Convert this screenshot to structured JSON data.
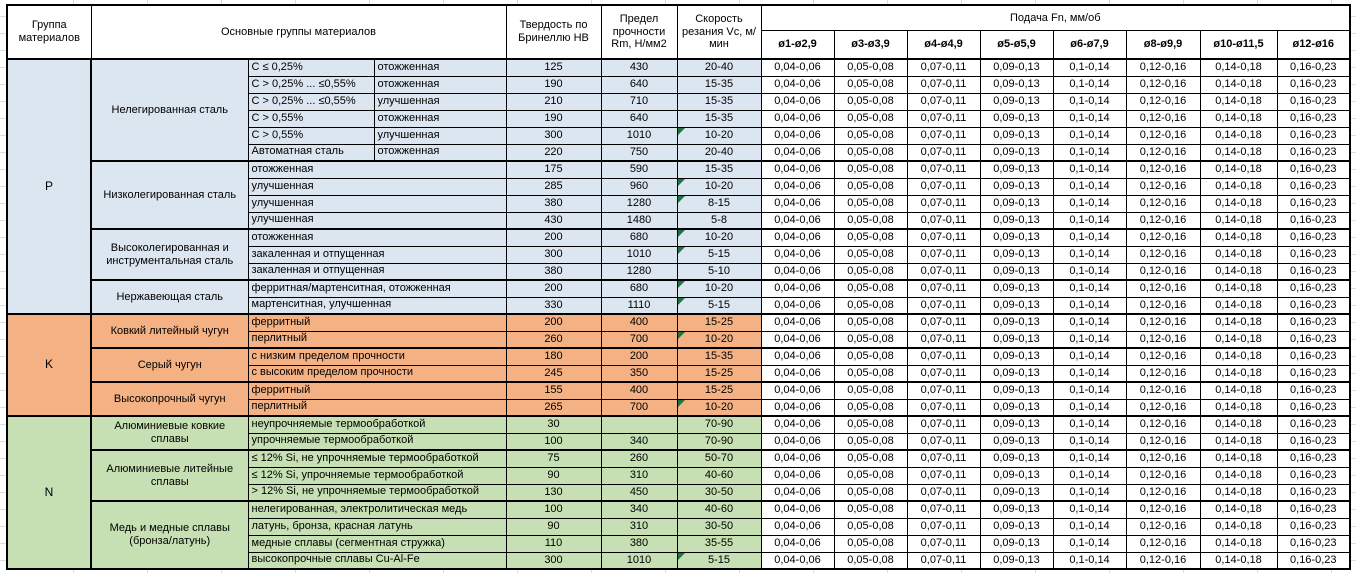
{
  "header": {
    "group_col": "Группа материалов",
    "material_col": "Основные группы материалов",
    "hardness_col": "Твердость по Бринеллю HB",
    "strength_col": "Предел прочности Rm, Н/мм2",
    "speed_col": "Скорость резания Vc, м/мин",
    "feed_col": "Подача Fn, мм/об",
    "feed_diameters": [
      "ø1-ø2,9",
      "ø3-ø3,9",
      "ø4-ø4,9",
      "ø5-ø5,9",
      "ø6-ø7,9",
      "ø8-ø9,9",
      "ø10-ø11,5",
      "ø12-ø16"
    ]
  },
  "feed_values": [
    "0,04-0,06",
    "0,05-0,08",
    "0,07-0,11",
    "0,09-0,13",
    "0,1-0,14",
    "0,12-0,16",
    "0,14-0,18",
    "0,16-0,23"
  ],
  "colors": {
    "group_p": "#DCE6F1",
    "group_k": "#F4B183",
    "group_n": "#C6E0B4",
    "flag": "#217346",
    "border": "#000000",
    "gridline": "#DCDCDC"
  },
  "groups": [
    {
      "code": "P",
      "color_key": "group_p",
      "blocks": [
        {
          "name": "Нелегированная сталь",
          "rows": [
            {
              "sub1": "C ≤ 0,25%",
              "sub2": "отожженная",
              "hb": "125",
              "rm": "430",
              "vc": "20-40",
              "flag": false
            },
            {
              "sub1": "C > 0,25% ... ≤0,55%",
              "sub2": "отожженная",
              "hb": "190",
              "rm": "640",
              "vc": "15-35",
              "flag": false
            },
            {
              "sub1": "C > 0,25% ... ≤0,55%",
              "sub2": "улучшенная",
              "hb": "210",
              "rm": "710",
              "vc": "15-35",
              "flag": false
            },
            {
              "sub1": "C > 0,55%",
              "sub2": "отожженная",
              "hb": "190",
              "rm": "640",
              "vc": "15-35",
              "flag": false
            },
            {
              "sub1": "C > 0,55%",
              "sub2": "улучшенная",
              "hb": "300",
              "rm": "1010",
              "vc": "10-20",
              "flag": true
            },
            {
              "sub1": "Автоматная сталь",
              "sub2": "отожженная",
              "hb": "220",
              "rm": "750",
              "vc": "20-40",
              "flag": false
            }
          ]
        },
        {
          "name": "Низколегированная сталь",
          "rows": [
            {
              "desc": "отожженная",
              "hb": "175",
              "rm": "590",
              "vc": "15-35",
              "flag": false
            },
            {
              "desc": "улучшенная",
              "hb": "285",
              "rm": "960",
              "vc": "10-20",
              "flag": true
            },
            {
              "desc": "улучшенная",
              "hb": "380",
              "rm": "1280",
              "vc": "8-15",
              "flag": true
            },
            {
              "desc": "улучшенная",
              "hb": "430",
              "rm": "1480",
              "vc": "5-8",
              "flag": false
            }
          ]
        },
        {
          "name": "Высоколегированная и инструментальная сталь",
          "rows": [
            {
              "desc": "отожженная",
              "hb": "200",
              "rm": "680",
              "vc": "10-20",
              "flag": true
            },
            {
              "desc": "закаленная и отпущенная",
              "hb": "300",
              "rm": "1010",
              "vc": "5-15",
              "flag": true
            },
            {
              "desc": "закаленная и отпущенная",
              "hb": "380",
              "rm": "1280",
              "vc": "5-10",
              "flag": false
            }
          ]
        },
        {
          "name": "Нержавеющая сталь",
          "rows": [
            {
              "desc": "ферритная/мартенситная, отожженная",
              "hb": "200",
              "rm": "680",
              "vc": "10-20",
              "flag": true
            },
            {
              "desc": "мартенситная, улучшенная",
              "hb": "330",
              "rm": "1110",
              "vc": "5-15",
              "flag": true
            }
          ]
        }
      ]
    },
    {
      "code": "K",
      "color_key": "group_k",
      "blocks": [
        {
          "name": "Ковкий литейный чугун",
          "rows": [
            {
              "desc": "ферритный",
              "hb": "200",
              "rm": "400",
              "vc": "15-25",
              "flag": false
            },
            {
              "desc": "перлитный",
              "hb": "260",
              "rm": "700",
              "vc": "10-20",
              "flag": true
            }
          ]
        },
        {
          "name": "Серый чугун",
          "rows": [
            {
              "desc": "с низким пределом прочности",
              "hb": "180",
              "rm": "200",
              "vc": "15-35",
              "flag": false
            },
            {
              "desc": "с высоким пределом прочности",
              "hb": "245",
              "rm": "350",
              "vc": "15-25",
              "flag": false
            }
          ]
        },
        {
          "name": "Высокопрочный чугун",
          "rows": [
            {
              "desc": "ферритный",
              "hb": "155",
              "rm": "400",
              "vc": "15-25",
              "flag": false
            },
            {
              "desc": "перлитный",
              "hb": "265",
              "rm": "700",
              "vc": "10-20",
              "flag": true
            }
          ]
        }
      ]
    },
    {
      "code": "N",
      "color_key": "group_n",
      "blocks": [
        {
          "name": "Алюминиевые ковкие сплавы",
          "rows": [
            {
              "desc": "неупрочняемые термообработкой",
              "hb": "30",
              "rm": "",
              "vc": "70-90",
              "flag": false
            },
            {
              "desc": "упрочняемые термообработкой",
              "hb": "100",
              "rm": "340",
              "vc": "70-90",
              "flag": false
            }
          ]
        },
        {
          "name": "Алюминиевые литейные сплавы",
          "rows": [
            {
              "desc": "≤ 12% Si, не упрочняемые термообработкой",
              "hb": "75",
              "rm": "260",
              "vc": "50-70",
              "flag": false
            },
            {
              "desc": "≤ 12% Si, упрочняемые термообработкой",
              "hb": "90",
              "rm": "310",
              "vc": "40-60",
              "flag": false
            },
            {
              "desc": "> 12% Si, не упрочняемые термообработкой",
              "hb": "130",
              "rm": "450",
              "vc": "30-50",
              "flag": false
            }
          ]
        },
        {
          "name": "Медь и медные сплавы (бронза/латунь)",
          "rows": [
            {
              "desc": "нелегированная, электролитическая медь",
              "hb": "100",
              "rm": "340",
              "vc": "40-60",
              "flag": false
            },
            {
              "desc": "латунь, бронза, красная латунь",
              "hb": "90",
              "rm": "310",
              "vc": "30-50",
              "flag": false
            },
            {
              "desc": "медные сплавы (сегментная стружка)",
              "hb": "110",
              "rm": "380",
              "vc": "35-55",
              "flag": false
            },
            {
              "desc": "высокопрочные сплавы Cu-Al-Fe",
              "hb": "300",
              "rm": "1010",
              "vc": "5-15",
              "flag": true
            }
          ]
        }
      ]
    }
  ]
}
